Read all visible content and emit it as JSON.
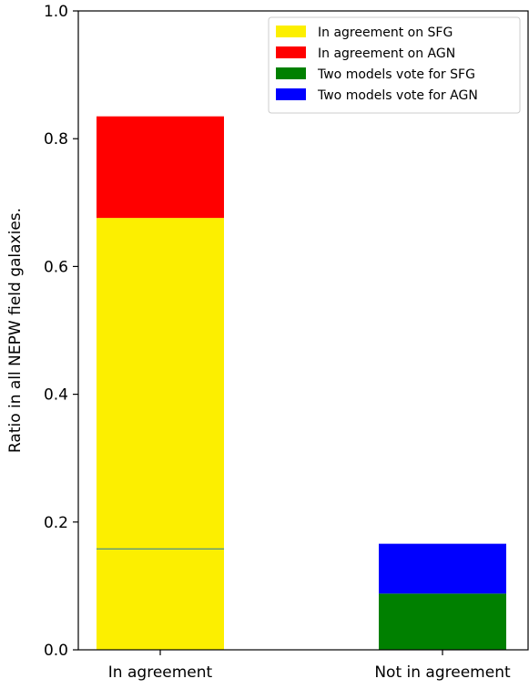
{
  "chart_data": {
    "type": "bar",
    "stacked": true,
    "categories": [
      "In agreement",
      "Not in agreement"
    ],
    "series": [
      {
        "name": "In agreement on SFG",
        "color": "#fcef00",
        "values": [
          0.676,
          0.0
        ]
      },
      {
        "name": "In agreement on AGN",
        "color": "#ff0000",
        "values": [
          0.159,
          0.0
        ]
      },
      {
        "name": "Two models vote for SFG",
        "color": "#008000",
        "values": [
          0.0,
          0.088
        ]
      },
      {
        "name": "Two models vote for AGN",
        "color": "#0000ff",
        "values": [
          0.0,
          0.078
        ]
      }
    ],
    "ylabel": "Ratio in all NEPW field galaxies.",
    "xlabel": "",
    "title": "",
    "ylim": [
      0.0,
      1.0
    ],
    "yticks": [
      0.0,
      0.2,
      0.4,
      0.6,
      0.8,
      1.0
    ],
    "ytick_labels": [
      "0.0",
      "0.2",
      "0.4",
      "0.6",
      "0.8",
      "1.0"
    ],
    "grid": false,
    "legend_position": "top-right",
    "annotations": [
      {
        "type": "hline",
        "category": "In agreement",
        "y": 0.158,
        "color": "#1f77b4"
      }
    ]
  }
}
